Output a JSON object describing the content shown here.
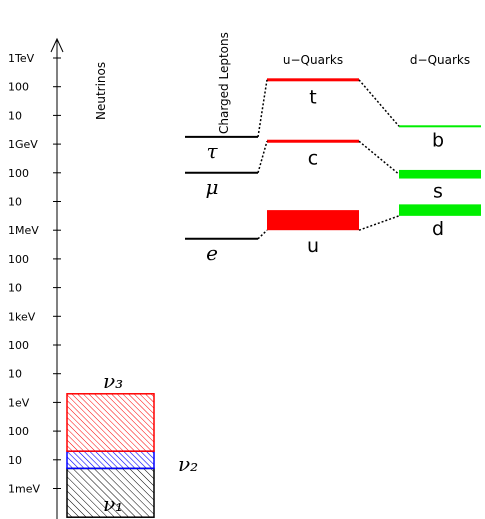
{
  "chart_data": {
    "type": "diagram",
    "title": "",
    "y_axis": {
      "scale": "log",
      "unit": "eV",
      "range": [
        "1meV",
        "1TeV"
      ],
      "ticks": [
        {
          "label": "1TeV",
          "log10_eV": 12
        },
        {
          "label": "100",
          "log10_eV": 11
        },
        {
          "label": "10",
          "log10_eV": 10
        },
        {
          "label": "1GeV",
          "log10_eV": 9
        },
        {
          "label": "100",
          "log10_eV": 8
        },
        {
          "label": "10",
          "log10_eV": 7
        },
        {
          "label": "1MeV",
          "log10_eV": 6
        },
        {
          "label": "100",
          "log10_eV": 5
        },
        {
          "label": "10",
          "log10_eV": 4
        },
        {
          "label": "1keV",
          "log10_eV": 3
        },
        {
          "label": "100",
          "log10_eV": 2
        },
        {
          "label": "10",
          "log10_eV": 1
        },
        {
          "label": "1eV",
          "log10_eV": 0
        },
        {
          "label": "100",
          "log10_eV": -1
        },
        {
          "label": "10",
          "log10_eV": -2
        },
        {
          "label": "1meV",
          "log10_eV": -3
        }
      ]
    },
    "columns": [
      {
        "key": "neutrinos",
        "title": "Neutrinos"
      },
      {
        "key": "leptons",
        "title": "Charged Leptons"
      },
      {
        "key": "uquarks",
        "title": "u−Quarks"
      },
      {
        "key": "dquarks",
        "title": "d−Quarks"
      }
    ],
    "leptons": [
      {
        "label": "e",
        "log10_eV": 5.7
      },
      {
        "label": "μ",
        "log10_eV": 8.0
      },
      {
        "label": "τ",
        "log10_eV": 9.25
      }
    ],
    "u_quarks": [
      {
        "label": "u",
        "log10_eV_low": 6.0,
        "log10_eV_high": 6.7,
        "color": "#ff0000"
      },
      {
        "label": "c",
        "log10_eV": 9.1,
        "color": "#ff0000"
      },
      {
        "label": "t",
        "log10_eV": 11.24,
        "color": "#ff0000"
      }
    ],
    "d_quarks": [
      {
        "label": "d",
        "log10_eV_low": 6.5,
        "log10_eV_high": 6.9,
        "color": "#00ee00"
      },
      {
        "label": "s",
        "log10_eV_low": 7.8,
        "log10_eV_high": 8.1,
        "color": "#00ee00"
      },
      {
        "label": "b",
        "log10_eV": 9.62,
        "color": "#00ee00"
      }
    ],
    "neutrinos": [
      {
        "label": "ν₁",
        "log10_eV_low": -4,
        "log10_eV_high": -2.3,
        "color": "#000000",
        "hatch": "diagonal-back"
      },
      {
        "label": "ν₂",
        "log10_eV_low": -2.3,
        "log10_eV_high": -1.7,
        "color": "#0000ff",
        "hatch": "diagonal-back"
      },
      {
        "label": "ν₃",
        "log10_eV_low": -1.7,
        "log10_eV_high": 0.3,
        "color": "#ff0000",
        "hatch": "diagonal-back"
      }
    ]
  }
}
